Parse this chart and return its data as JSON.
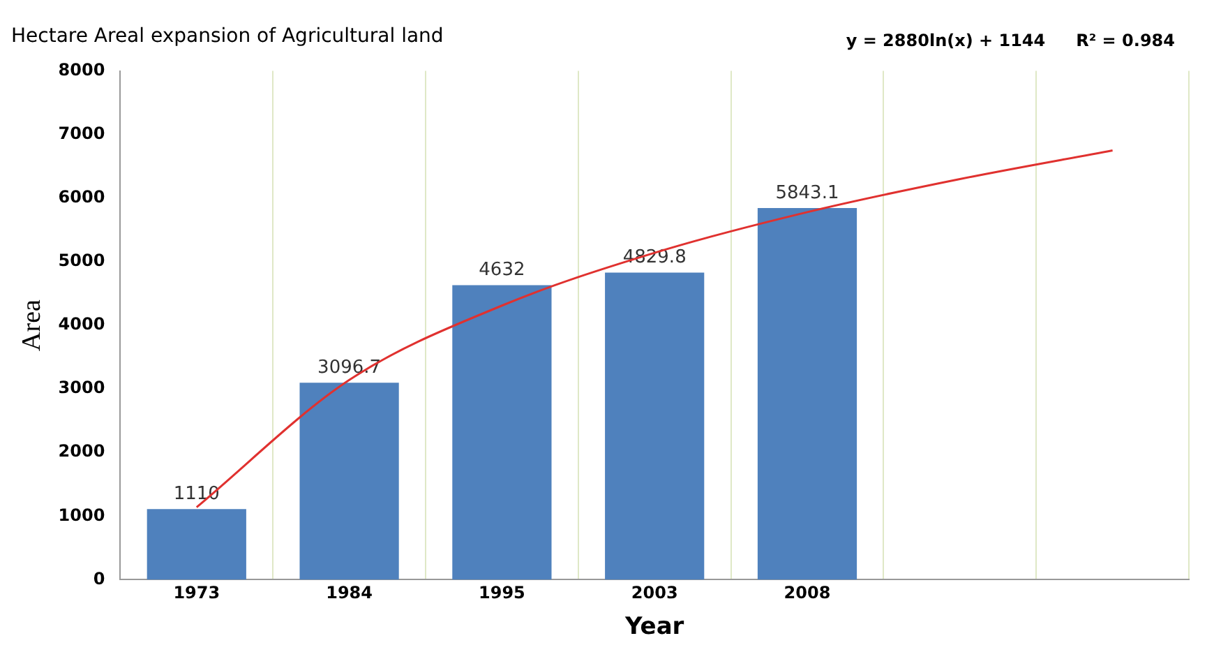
{
  "chart_data": {
    "type": "bar",
    "title": "Hectare Areal expansion of Agricultural land",
    "xlabel": "Year",
    "ylabel": "Area",
    "categories": [
      "1973",
      "1984",
      "1995",
      "2003",
      "2008",
      null,
      null
    ],
    "series": [
      {
        "color": "#4f81bd",
        "values": [
          1110,
          3096.7,
          4632,
          4829.8,
          5843.1,
          null,
          null
        ],
        "value_labels": [
          "1110",
          "3096.7",
          "4632",
          "4829.8",
          "5843.1",
          null,
          null
        ]
      },
      {
        "type": "line",
        "color": "#e0312f",
        "values": [
          1140,
          3140,
          4310,
          5140,
          5780,
          6300,
          6750
        ]
      }
    ],
    "ylim": [
      0,
      8000
    ],
    "yticks": [
      0,
      1000,
      2000,
      3000,
      4000,
      5000,
      6000,
      7000,
      8000
    ],
    "grid": "x",
    "legend": false,
    "marker": "none",
    "annotations": [
      "y = 2880ln(x) + 1144",
      "R² = 0.984"
    ]
  }
}
